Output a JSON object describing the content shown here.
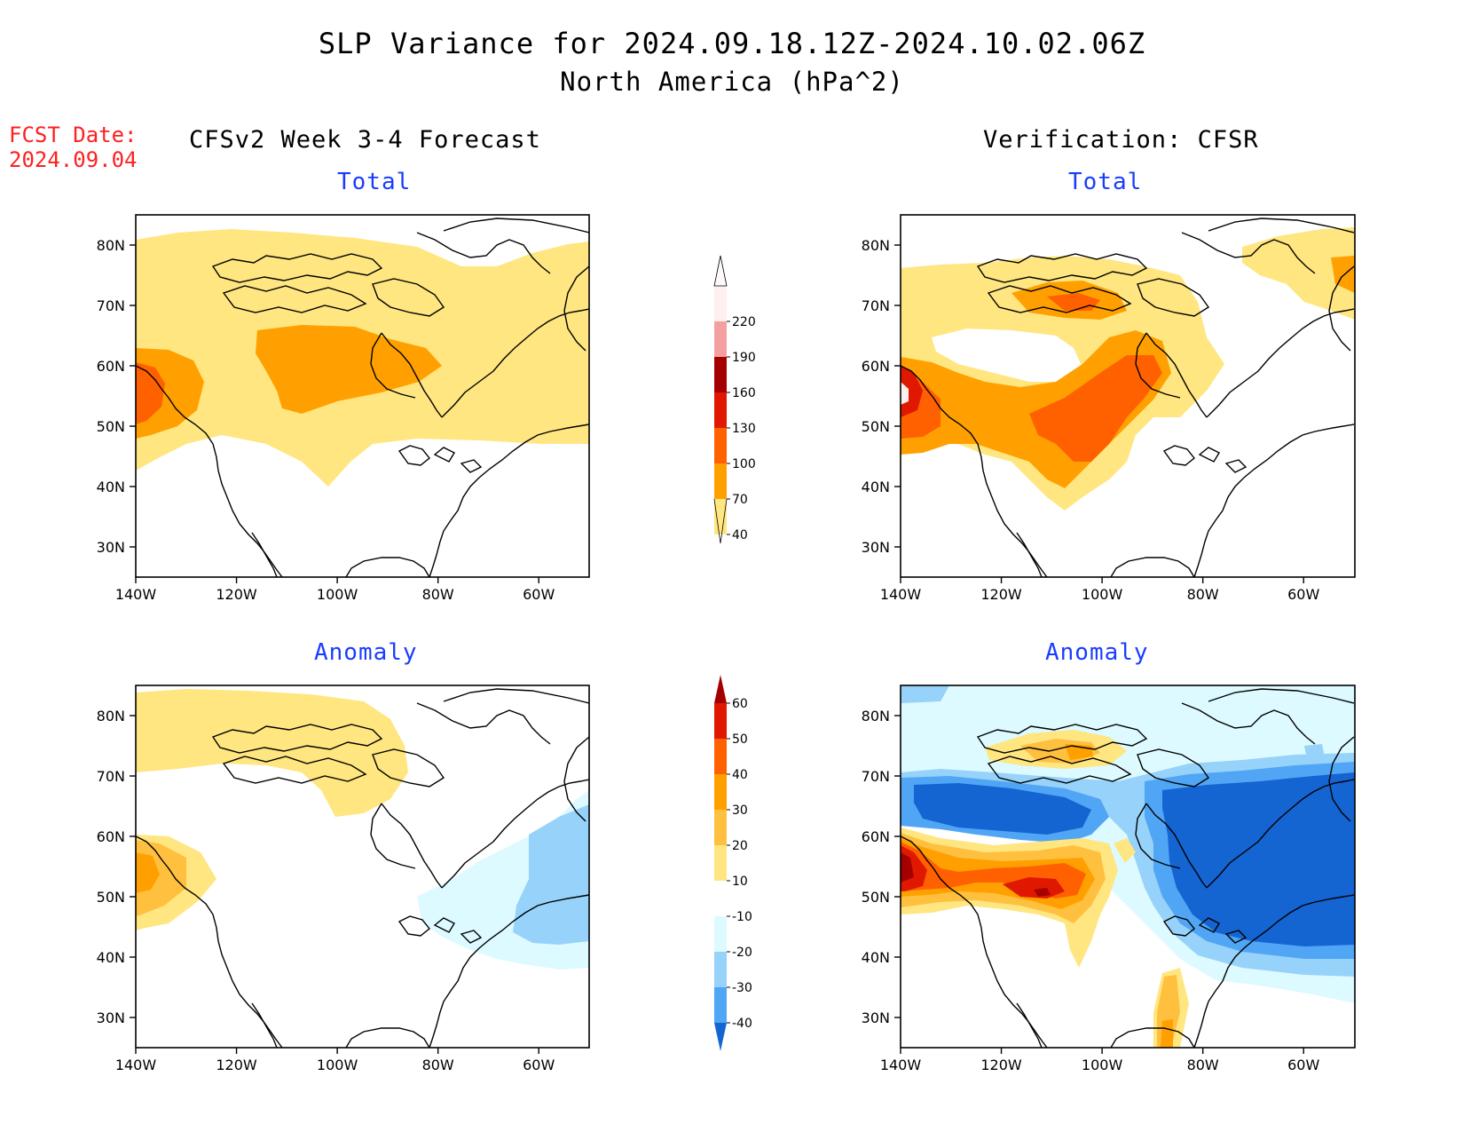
{
  "header": {
    "title": "SLP Variance for 2024.09.18.12Z-2024.10.02.06Z",
    "subtitle": "North America (hPa^2)",
    "fcst_label": "FCST Date:",
    "fcst_date": "2024.09.04"
  },
  "columns": {
    "left": "CFSv2 Week 3-4 Forecast",
    "right": "Verification: CFSR"
  },
  "panels": [
    {
      "id": "fcst-total",
      "title": "Total"
    },
    {
      "id": "verif-total",
      "title": "Total"
    },
    {
      "id": "fcst-anomaly",
      "title": "Anomaly"
    },
    {
      "id": "verif-anomaly",
      "title": "Anomaly"
    }
  ],
  "axes": {
    "lat_labels": [
      "80N",
      "70N",
      "60N",
      "50N",
      "40N",
      "30N"
    ],
    "lon_labels": [
      "140W",
      "120W",
      "100W",
      "80W",
      "60W"
    ],
    "lat_values": [
      80,
      70,
      60,
      50,
      40,
      30
    ],
    "lon_values": [
      -140,
      -120,
      -100,
      -80,
      -60
    ],
    "lon_range": [
      -140,
      -50
    ],
    "lat_range": [
      25,
      85
    ]
  },
  "colorbars": {
    "total": {
      "labels": [
        "40",
        "70",
        "100",
        "130",
        "160",
        "190",
        "220"
      ],
      "colors": [
        "#ffe680",
        "#ffa000",
        "#ff6000",
        "#e11800",
        "#a50000",
        "#f4a0a0",
        "#fff0f0"
      ]
    },
    "anomaly": {
      "labels": [
        "60",
        "50",
        "40",
        "30",
        "20",
        "10",
        "-10",
        "-20",
        "-30",
        "-40"
      ],
      "colors_top_to_bottom": [
        "#a50000",
        "#e11800",
        "#ff6000",
        "#ffa000",
        "#ffc040",
        "#ffe680",
        "#ffffff",
        "#dcfaff",
        "#96d2fa",
        "#50a5f5",
        "#1464d2"
      ]
    }
  },
  "colors": {
    "title_blue": "#1a3cff",
    "fcst_red": "#ff2020"
  }
}
